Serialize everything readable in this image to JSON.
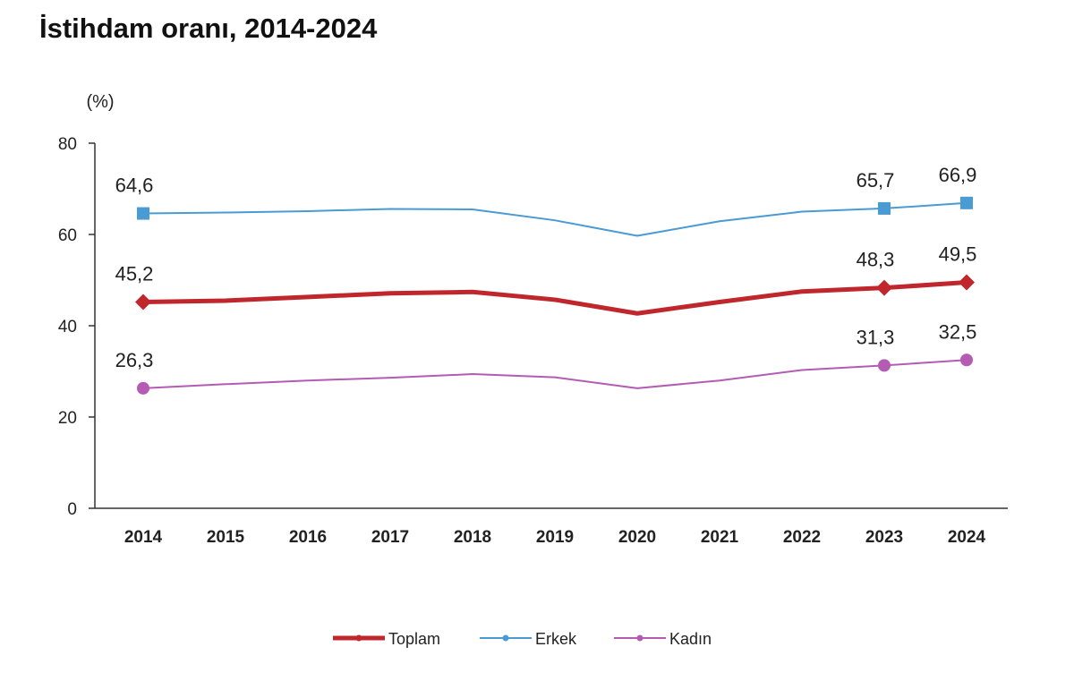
{
  "chart_data": {
    "type": "line",
    "title": "İstihdam oranı, 2014-2024",
    "ylabel": "(%)",
    "xlabel": "",
    "ylim": [
      0,
      80
    ],
    "yticks": [
      0,
      20,
      40,
      60,
      80
    ],
    "grid": false,
    "legend_position": "bottom",
    "categories": [
      "2014",
      "2015",
      "2016",
      "2017",
      "2018",
      "2019",
      "2020",
      "2021",
      "2022",
      "2023",
      "2024"
    ],
    "series": [
      {
        "name": "Toplam",
        "color": "#c0272d",
        "marker": "diamond",
        "width": 5,
        "values": [
          45.2,
          45.5,
          46.3,
          47.1,
          47.4,
          45.7,
          42.7,
          45.2,
          47.5,
          48.3,
          49.5
        ],
        "labels": {
          "0": "45,2",
          "9": "48,3",
          "10": "49,5"
        }
      },
      {
        "name": "Erkek",
        "color": "#4a9ad4",
        "marker": "square",
        "width": 2,
        "values": [
          64.6,
          64.8,
          65.1,
          65.6,
          65.5,
          63.1,
          59.7,
          62.9,
          65.0,
          65.7,
          66.9
        ],
        "labels": {
          "0": "64,6",
          "9": "65,7",
          "10": "66,9"
        }
      },
      {
        "name": "Kadın",
        "color": "#b45cb4",
        "marker": "circle",
        "width": 2,
        "values": [
          26.3,
          27.2,
          28.0,
          28.6,
          29.4,
          28.7,
          26.3,
          28.0,
          30.3,
          31.3,
          32.5
        ],
        "labels": {
          "0": "26,3",
          "9": "31,3",
          "10": "32,5"
        }
      }
    ]
  }
}
